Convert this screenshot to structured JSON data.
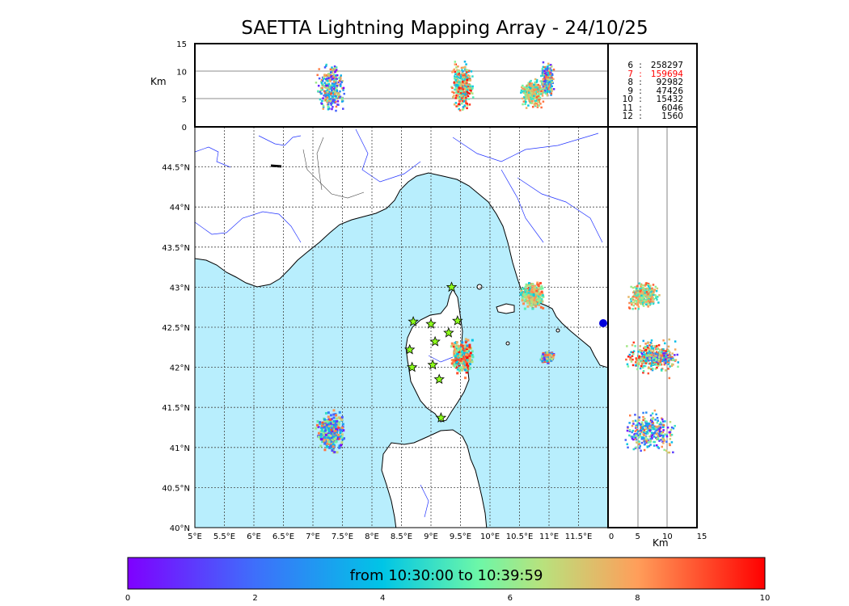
{
  "title": "SAETTA Lightning Mapping Array - 24/10/25",
  "alt_unit": "Km",
  "alt_ticks": [
    "0",
    "5",
    "10",
    "15"
  ],
  "alt_ticks_top": [
    "15",
    "10",
    "5",
    "0"
  ],
  "lon_ticks": [
    "5°E",
    "5.5°E",
    "6°E",
    "6.5°E",
    "7°E",
    "7.5°E",
    "8°E",
    "8.5°E",
    "9°E",
    "9.5°E",
    "10°E",
    "10.5°E",
    "11°E",
    "11.5°E"
  ],
  "lat_ticks": [
    "40°N",
    "40.5°N",
    "41°N",
    "41.5°N",
    "42°N",
    "42.5°N",
    "43°N",
    "43.5°N",
    "44°N",
    "44.5°N"
  ],
  "stats": [
    {
      "k": "6",
      "v": "258297",
      "color": "#000000"
    },
    {
      "k": "7",
      "v": "159694",
      "color": "#ff0000"
    },
    {
      "k": "8",
      "v": "92982",
      "color": "#000000"
    },
    {
      "k": "9",
      "v": "47426",
      "color": "#000000"
    },
    {
      "k": "10",
      "v": "15432",
      "color": "#000000"
    },
    {
      "k": "11",
      "v": "6046",
      "color": "#000000"
    },
    {
      "k": "12",
      "v": "1560",
      "color": "#000000"
    }
  ],
  "colorbar": {
    "label": "from 10:30:00 to 10:39:59",
    "ticks": [
      "0",
      "2",
      "4",
      "6",
      "8",
      "10"
    ]
  },
  "chart_data": {
    "type": "scatter",
    "map_extent": {
      "lon": [
        5,
        12
      ],
      "lat": [
        40,
        45
      ]
    },
    "alt_range_km": [
      0,
      15
    ],
    "time_range_min": [
      0,
      10
    ],
    "colormap": "rainbow",
    "clusters": [
      {
        "lon": [
          9.3,
          9.75
        ],
        "lat": [
          41.85,
          42.4
        ],
        "alt": [
          2,
          13
        ],
        "time": [
          3,
          10
        ]
      },
      {
        "lon": [
          7.0,
          7.6
        ],
        "lat": [
          40.9,
          41.5
        ],
        "alt": [
          2,
          12
        ],
        "time": [
          0,
          9
        ]
      },
      {
        "lon": [
          10.5,
          10.95
        ],
        "lat": [
          42.7,
          43.1
        ],
        "alt": [
          3,
          9
        ],
        "time": [
          4,
          9
        ]
      },
      {
        "lon": [
          10.85,
          11.1
        ],
        "lat": [
          42.05,
          42.2
        ],
        "alt": [
          5,
          12
        ],
        "time": [
          0,
          9
        ]
      }
    ],
    "stations": [
      {
        "lon": 9.35,
        "lat": 43.0
      },
      {
        "lon": 8.7,
        "lat": 42.57
      },
      {
        "lon": 9.0,
        "lat": 42.54
      },
      {
        "lon": 9.45,
        "lat": 42.58
      },
      {
        "lon": 9.3,
        "lat": 42.43
      },
      {
        "lon": 9.07,
        "lat": 42.32
      },
      {
        "lon": 8.64,
        "lat": 42.22
      },
      {
        "lon": 8.68,
        "lat": 42.0
      },
      {
        "lon": 9.03,
        "lat": 42.03
      },
      {
        "lon": 9.14,
        "lat": 41.85
      },
      {
        "lon": 9.17,
        "lat": 41.37
      }
    ]
  }
}
